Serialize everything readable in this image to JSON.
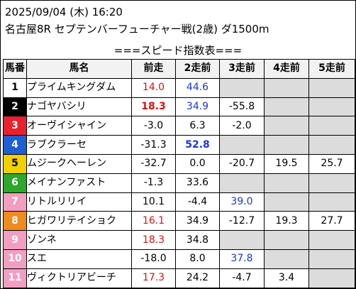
{
  "header": {
    "date_line": "2025/09/04 (木) 16:20",
    "race_line": "名古屋8R セプテンバーフューチャー戦(2歳) ダ1500m",
    "banner": "===スピード指数表==="
  },
  "table": {
    "columns": [
      "馬番",
      "馬名",
      "前走",
      "2走前",
      "3走前",
      "4走前",
      "5走前"
    ],
    "rows": [
      {
        "num": "1",
        "name": "プライムキングダム",
        "vals": [
          "14.0",
          "44.6",
          "",
          "",
          ""
        ]
      },
      {
        "num": "2",
        "name": "ナゴヤバシリ",
        "vals": [
          "18.3",
          "34.9",
          "-55.8",
          "",
          ""
        ]
      },
      {
        "num": "3",
        "name": "オーヴイシャイン",
        "vals": [
          "-3.0",
          "6.3",
          "-2.0",
          "",
          ""
        ]
      },
      {
        "num": "4",
        "name": "ラブクラーセ",
        "vals": [
          "-31.3",
          "52.8",
          "",
          "",
          ""
        ]
      },
      {
        "num": "5",
        "name": "ムジークヘーレン",
        "vals": [
          "-32.7",
          "0.0",
          "-20.7",
          "19.5",
          "25.7"
        ]
      },
      {
        "num": "6",
        "name": "メイナンファスト",
        "vals": [
          "-1.3",
          "33.6",
          "",
          "",
          ""
        ]
      },
      {
        "num": "7",
        "name": "リトルリリイ",
        "vals": [
          "10.1",
          "-4.4",
          "39.0",
          "",
          ""
        ]
      },
      {
        "num": "8",
        "name": "ヒガワリテイショク",
        "vals": [
          "16.1",
          "34.9",
          "-12.7",
          "19.3",
          "27.7"
        ]
      },
      {
        "num": "9",
        "name": "ゾンネ",
        "vals": [
          "18.3",
          "34.8",
          "",
          "",
          ""
        ]
      },
      {
        "num": "10",
        "name": "スエ",
        "vals": [
          "-18.0",
          "8.0",
          "37.8",
          "",
          ""
        ]
      },
      {
        "num": "11",
        "name": "ヴィクトリアビーチ",
        "vals": [
          "17.3",
          "24.2",
          "-4.7",
          "3.4",
          ""
        ]
      }
    ]
  },
  "styles": {
    "num_colors": [
      "#ffffff",
      "#000000",
      "#e8212e",
      "#1f5fd1",
      "#f0d000",
      "#2da82d",
      "#f29ec1",
      "#ef8b1f",
      "#f29ec1",
      "#f29ec1",
      "#f29ec1"
    ],
    "num_text_colors": [
      "#000000",
      "#ffffff",
      "#ffffff",
      "#ffffff",
      "#000000",
      "#ffffff",
      "#ffffff",
      "#ffffff",
      "#ffffff",
      "#ffffff",
      "#ffffff"
    ],
    "value_marks": [
      [
        "red",
        "blue",
        "",
        "",
        ""
      ],
      [
        "red bold",
        "blue",
        "",
        "",
        ""
      ],
      [
        "",
        "",
        "",
        "",
        ""
      ],
      [
        "",
        "blue bold",
        "",
        "",
        ""
      ],
      [
        "",
        "",
        "",
        "",
        ""
      ],
      [
        "",
        "",
        "",
        "",
        ""
      ],
      [
        "",
        "",
        "blue",
        "",
        ""
      ],
      [
        "red",
        "",
        "",
        "",
        ""
      ],
      [
        "red",
        "",
        "",
        "",
        ""
      ],
      [
        "",
        "",
        "blue",
        "",
        ""
      ],
      [
        "red",
        "",
        "",
        "",
        ""
      ]
    ]
  }
}
